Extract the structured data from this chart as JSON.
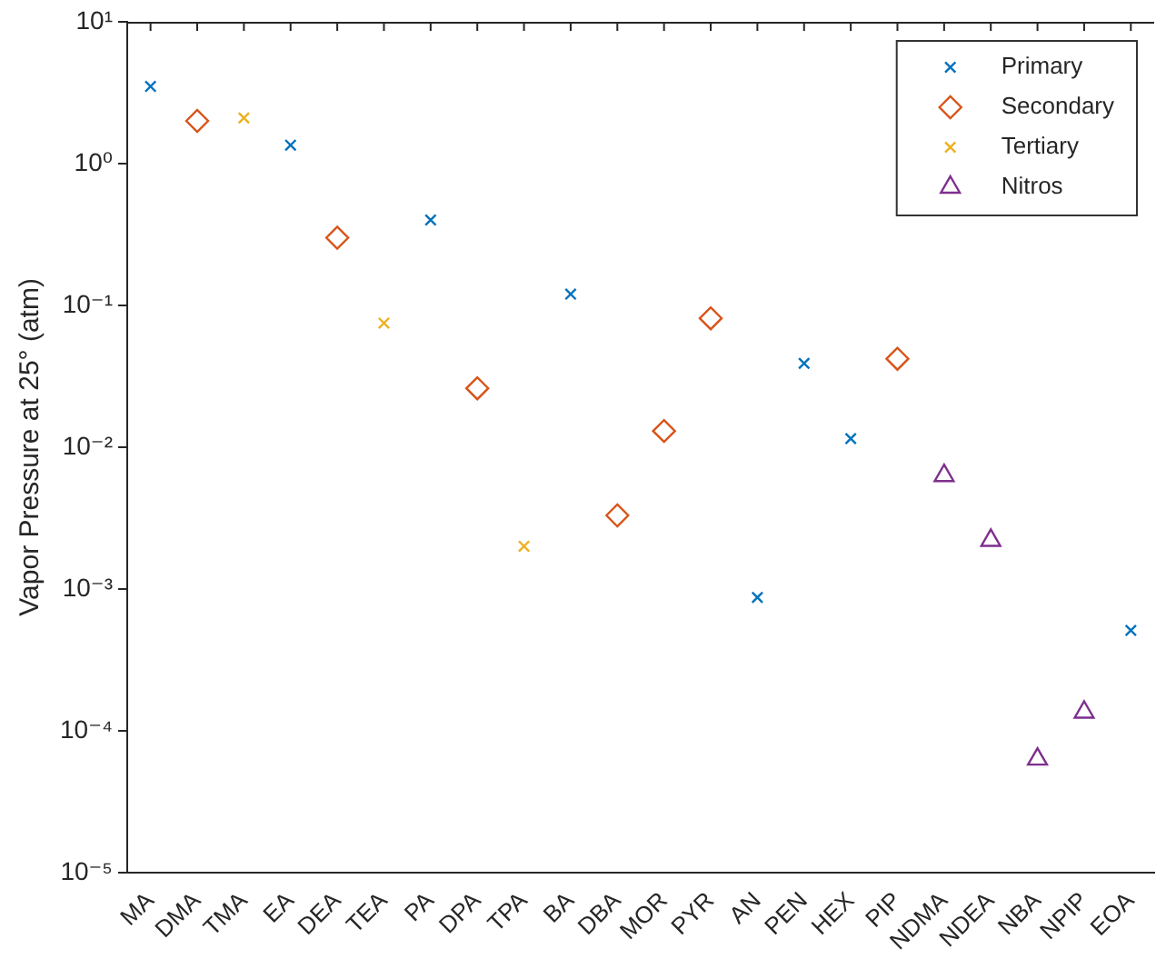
{
  "chart_data": {
    "type": "scatter",
    "ylabel": "Vapor Pressure at 25° (atm)",
    "categories": [
      "MA",
      "DMA",
      "TMA",
      "EA",
      "DEA",
      "TEA",
      "PA",
      "DPA",
      "TPA",
      "BA",
      "DBA",
      "MOR",
      "PYR",
      "AN",
      "PEN",
      "HEX",
      "PIP",
      "NDMA",
      "NDEA",
      "NBA",
      "NPIP",
      "EOA"
    ],
    "series": [
      {
        "name": "Primary",
        "color": "#0072bd",
        "marker": "cross",
        "values": [
          3.5,
          null,
          null,
          1.35,
          null,
          null,
          0.4,
          null,
          null,
          0.12,
          null,
          null,
          null,
          0.00087,
          0.039,
          0.0115,
          null,
          null,
          null,
          null,
          null,
          0.00051
        ]
      },
      {
        "name": "Secondary",
        "color": "#d95319",
        "marker": "diamond",
        "values": [
          null,
          2.0,
          null,
          null,
          0.3,
          null,
          null,
          0.026,
          null,
          null,
          0.0033,
          0.013,
          0.081,
          null,
          null,
          null,
          0.042,
          null,
          null,
          null,
          null,
          null
        ]
      },
      {
        "name": "Tertiary",
        "color": "#edb120",
        "marker": "cross",
        "values": [
          null,
          null,
          2.1,
          null,
          null,
          0.075,
          null,
          null,
          0.002,
          null,
          null,
          null,
          null,
          null,
          null,
          null,
          null,
          null,
          null,
          null,
          null,
          null
        ]
      },
      {
        "name": "Nitros",
        "color": "#7e2f8e",
        "marker": "triangle",
        "values": [
          null,
          null,
          null,
          null,
          null,
          null,
          null,
          null,
          null,
          null,
          null,
          null,
          null,
          null,
          null,
          null,
          null,
          0.0063,
          0.0022,
          6.3e-05,
          0.000135,
          null
        ]
      }
    ],
    "log": "y",
    "ylim": [
      1e-05,
      10
    ],
    "yticks": [
      {
        "value": 1e-05,
        "label": "10⁻⁵"
      },
      {
        "value": 0.0001,
        "label": "10⁻⁴"
      },
      {
        "value": 0.001,
        "label": "10⁻³"
      },
      {
        "value": 0.01,
        "label": "10⁻²"
      },
      {
        "value": 0.1,
        "label": "10⁻¹"
      },
      {
        "value": 1,
        "label": "10⁰"
      },
      {
        "value": 10,
        "label": "10¹"
      }
    ],
    "grid": false,
    "legend": "top right"
  }
}
